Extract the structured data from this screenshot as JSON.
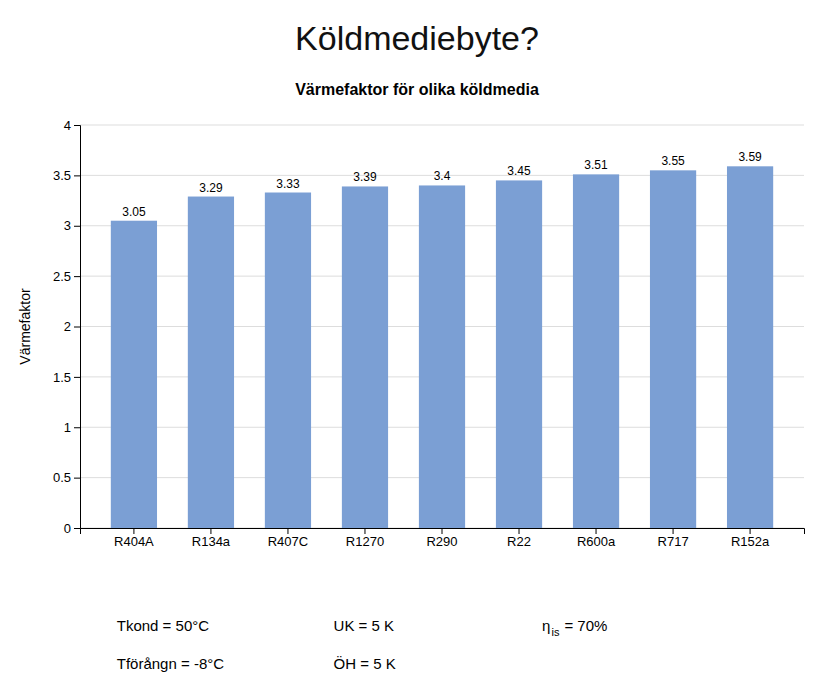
{
  "chart_data": {
    "type": "bar",
    "title": "Köldmediebyte?",
    "subtitle": "Värmefaktor för olika köldmedia",
    "categories": [
      "R404A",
      "R134a",
      "R407C",
      "R1270",
      "R290",
      "R22",
      "R600a",
      "R717",
      "R152a"
    ],
    "values": [
      3.05,
      3.29,
      3.33,
      3.39,
      3.4,
      3.45,
      3.51,
      3.55,
      3.59
    ],
    "color": "#7B9FD4",
    "y_label": "Värmefaktor",
    "ylim": [
      0,
      4.0
    ],
    "yticks": [
      0,
      0.5,
      1,
      1.5,
      2,
      2.5,
      3,
      3.5,
      4
    ],
    "grid": true,
    "data_labels": true,
    "annotations": [
      "Tkond = 50°C",
      "Tförångn = -8°C",
      "UK = 5 K",
      "ÖH = 5 K",
      "η",
      "is",
      "= 70%"
    ]
  }
}
